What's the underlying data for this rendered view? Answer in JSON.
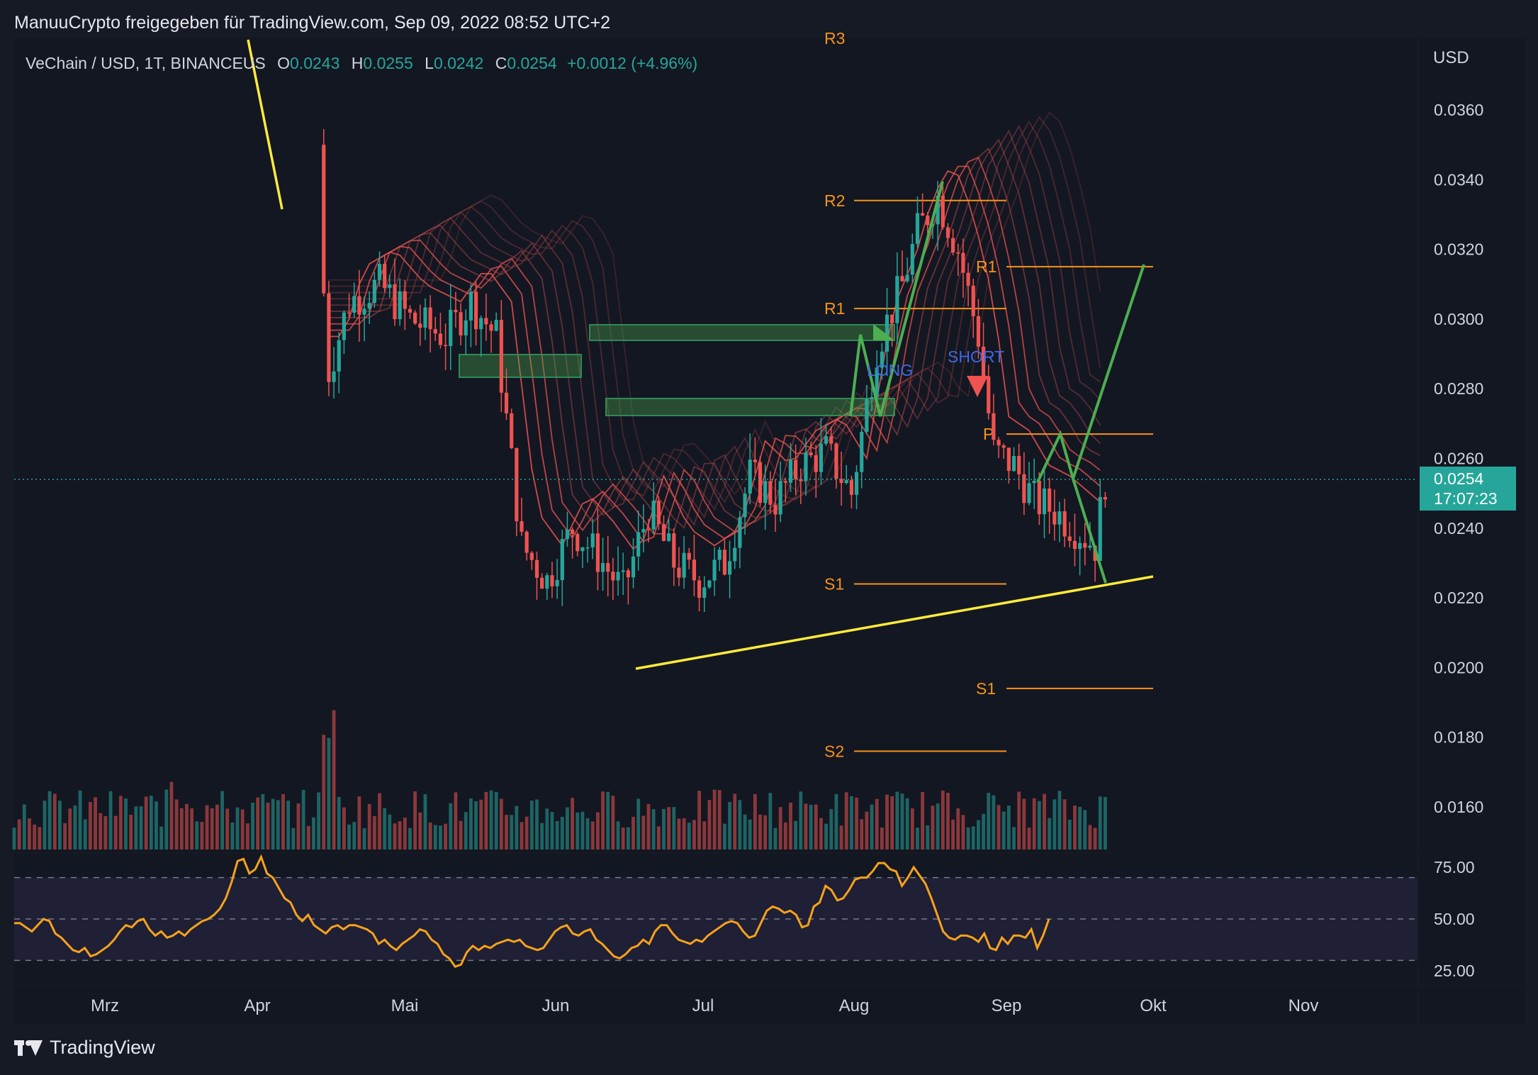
{
  "header": {
    "attribution": "ManuuCrypto freigegeben für TradingView.com, Sep 09, 2022 08:52 UTC+2"
  },
  "symbol": {
    "name": "VeChain / USD, 1T, BINANCEUS",
    "open_label": "O",
    "open": "0.0243",
    "high_label": "H",
    "high": "0.0255",
    "low_label": "L",
    "low": "0.0242",
    "close_label": "C",
    "close": "0.0254",
    "change": "+0.0012 (+4.96%)"
  },
  "price_axis": {
    "currency": "USD",
    "ticks": [
      "0.0360",
      "0.0340",
      "0.0320",
      "0.0300",
      "0.0280",
      "0.0260",
      "0.0240",
      "0.0220",
      "0.0200",
      "0.0180",
      "0.0160"
    ],
    "last_price": "0.0254",
    "countdown": "17:07:23"
  },
  "rsi_axis": {
    "ticks": [
      "75.00",
      "50.00",
      "25.00"
    ]
  },
  "footer": {
    "brand": "TradingView"
  },
  "colors": {
    "up": "#26a69a",
    "down": "#ef5350",
    "rsi": "#f7a21b",
    "pivot": "#f7931a",
    "trend": "#ffeb3b",
    "projection": "#4caf50"
  },
  "chart_data": {
    "type": "candlestick",
    "timeframe": "1T",
    "x_tick_labels": [
      "Mrz",
      "Apr",
      "Mai",
      "Jun",
      "Jul",
      "Aug",
      "Sep",
      "Okt",
      "Nov"
    ],
    "ylim": [
      0.015,
      0.0372
    ],
    "last_price": 0.0254,
    "pivot_levels": [
      {
        "label": "R3",
        "value": 0.0374
      },
      {
        "label": "R2",
        "value": 0.0334
      },
      {
        "label": "R1",
        "value": 0.0303
      },
      {
        "label": "S1",
        "value": 0.0224
      },
      {
        "label": "S2",
        "value": 0.0176
      },
      {
        "label": "R1",
        "value": 0.0315
      },
      {
        "label": "P",
        "value": 0.0267
      },
      {
        "label": "S1",
        "value": 0.0194
      }
    ],
    "annotations": [
      "LONG",
      "SHORT"
    ],
    "rsi": {
      "upper": 70,
      "middle": 50,
      "lower": 30,
      "values": [
        48,
        48,
        46,
        44,
        47,
        50,
        49,
        43,
        41,
        38,
        35,
        34,
        36,
        32,
        33,
        35,
        37,
        40,
        44,
        47,
        46,
        49,
        50,
        45,
        42,
        44,
        41,
        42,
        44,
        42,
        45,
        47,
        49,
        50,
        52,
        55,
        60,
        68,
        78,
        79,
        72,
        74,
        80,
        72,
        70,
        65,
        60,
        58,
        52,
        49,
        52,
        47,
        45,
        43,
        46,
        47,
        45,
        47,
        47,
        46,
        45,
        43,
        38,
        40,
        37,
        35,
        38,
        40,
        42,
        45,
        44,
        40,
        38,
        33,
        31,
        27,
        28,
        34,
        37,
        35,
        37,
        36,
        38,
        39,
        40,
        39,
        40,
        37,
        36,
        35,
        36,
        40,
        44,
        46,
        47,
        43,
        42,
        44,
        45,
        40,
        38,
        35,
        32,
        31,
        33,
        36,
        37,
        40,
        38,
        44,
        47,
        47,
        43,
        40,
        39,
        38,
        40,
        39,
        42,
        44,
        46,
        48,
        49,
        48,
        44,
        41,
        42,
        48,
        54,
        56,
        55,
        53,
        54,
        52,
        46,
        47,
        56,
        58,
        66,
        64,
        59,
        60,
        64,
        69,
        70,
        70,
        73,
        77,
        77,
        74,
        73,
        66,
        70,
        75,
        71,
        67,
        60,
        52,
        44,
        41,
        40,
        42,
        42,
        41,
        39,
        43,
        36,
        35,
        41,
        38,
        42,
        42,
        41,
        45,
        36,
        42,
        50
      ]
    }
  }
}
